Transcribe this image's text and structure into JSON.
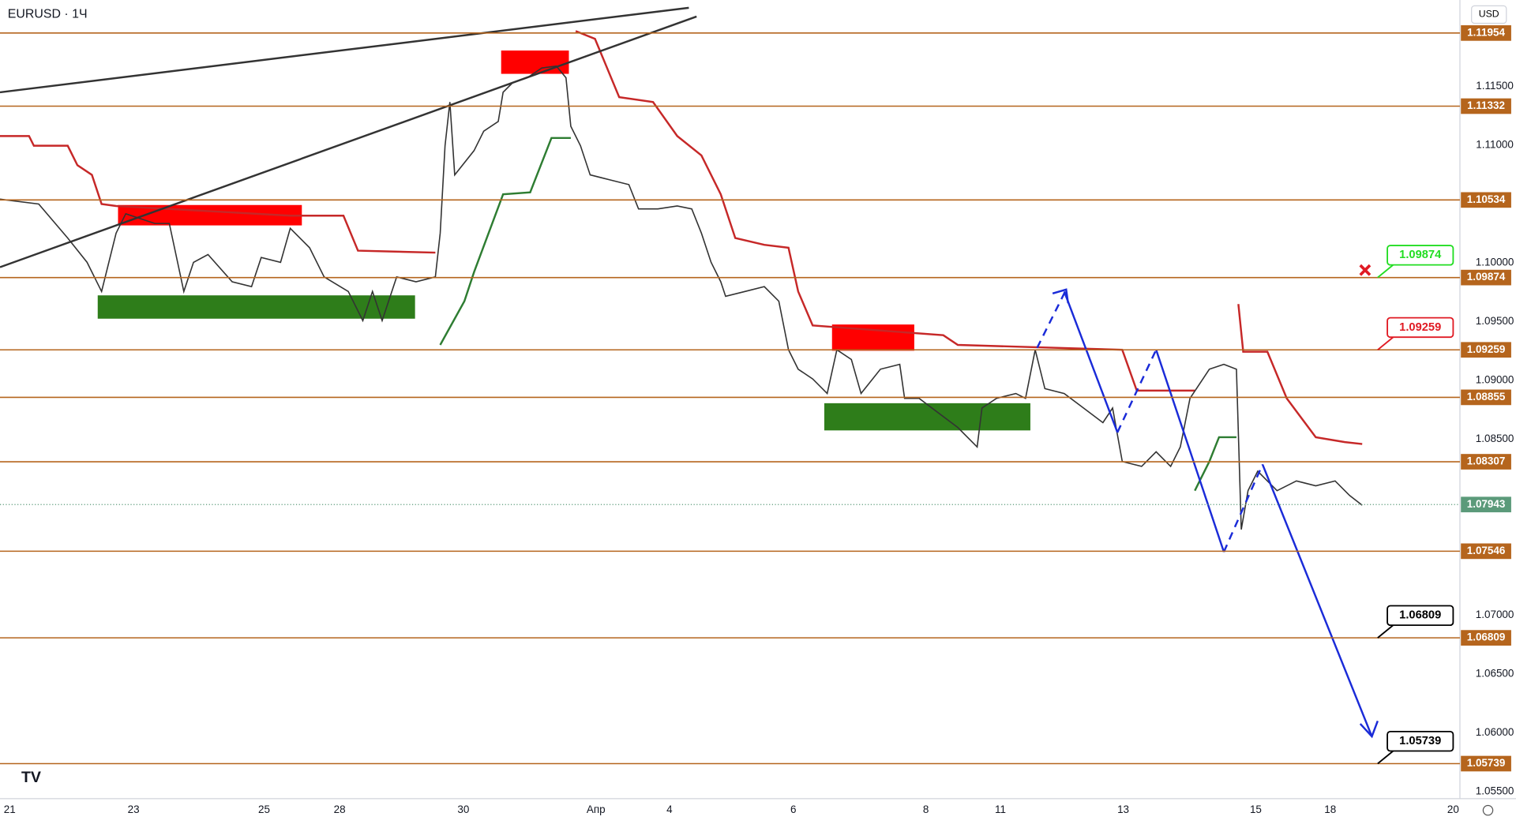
{
  "header": {
    "symbol": "EURUSD · 1Ч",
    "currency": "USD"
  },
  "price_axis": {
    "ylim": [
      1.05441,
      1.12235
    ],
    "ticks": [
      {
        "value": 1.115,
        "label": "1.11500"
      },
      {
        "value": 1.11,
        "label": "1.11000"
      },
      {
        "value": 1.1,
        "label": "1.10000"
      },
      {
        "value": 1.095,
        "label": "1.09500"
      },
      {
        "value": 1.09,
        "label": "1.09000"
      },
      {
        "value": 1.085,
        "label": "1.08500"
      },
      {
        "value": 1.07,
        "label": "1.07000"
      },
      {
        "value": 1.065,
        "label": "1.06500"
      },
      {
        "value": 1.06,
        "label": "1.06000"
      },
      {
        "value": 1.055,
        "label": "1.05500"
      }
    ]
  },
  "levels": [
    1.11954,
    1.11332,
    1.10534,
    1.09874,
    1.09259,
    1.08855,
    1.08307,
    1.07546,
    1.06809,
    1.05739
  ],
  "current_price": 1.07943,
  "callouts": [
    {
      "value": 1.09874,
      "color": "#22dd22"
    },
    {
      "value": 1.09259,
      "color": "#e01b24"
    },
    {
      "value": 1.06809,
      "color": "#000000"
    },
    {
      "value": 1.05739,
      "color": "#000000"
    }
  ],
  "x_axis": {
    "labels": [
      "21",
      "23",
      "25",
      "28",
      "30",
      "Апр",
      "4",
      "6",
      "8",
      "11",
      "13",
      "15",
      "18",
      "20"
    ]
  }
}
